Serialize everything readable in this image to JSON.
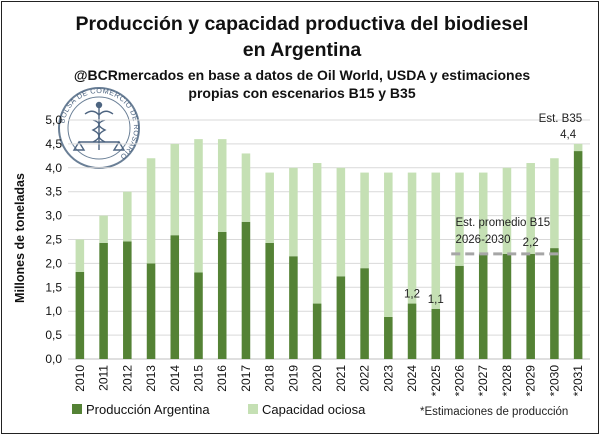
{
  "chart_data": {
    "type": "bar",
    "stacked": true,
    "title_line1": "Producción y capacidad productiva del biodiesel",
    "title_line2": "en Argentina",
    "subtitle_line1": "@BCRmercados en base a datos de Oil World, USDA y estimaciones",
    "subtitle_line2": "propias con escenarios B15 y B35",
    "ylabel": "Millones de toneladas",
    "ylim": [
      0,
      5
    ],
    "yticks": [
      "0,0",
      "0,5",
      "1,0",
      "1,5",
      "2,0",
      "2,5",
      "3,0",
      "3,5",
      "4,0",
      "4,5",
      "5,0"
    ],
    "ytick_values": [
      0,
      0.5,
      1,
      1.5,
      2,
      2.5,
      3,
      3.5,
      4,
      4.5,
      5
    ],
    "grid": "horizontal",
    "legend_position": "bottom",
    "categories": [
      "2010",
      "2011",
      "2012",
      "2013",
      "2014",
      "2015",
      "2016",
      "2017",
      "2018",
      "2019",
      "2020",
      "2021",
      "2022",
      "2023",
      "2024",
      "*2025",
      "*2026",
      "*2027",
      "*2028",
      "*2029",
      "*2030",
      "*2031"
    ],
    "series": [
      {
        "name": "Producción Argentina",
        "color": "#548235",
        "values": [
          1.82,
          2.43,
          2.46,
          2.0,
          2.59,
          1.81,
          2.66,
          2.87,
          2.43,
          2.15,
          1.16,
          1.73,
          1.9,
          0.88,
          1.16,
          1.05,
          1.95,
          2.2,
          2.2,
          2.2,
          2.32,
          4.35
        ]
      },
      {
        "name": "Capacidad ociosa",
        "color": "#c5e0b4",
        "values": [
          0.68,
          0.57,
          1.04,
          2.2,
          1.91,
          2.79,
          1.94,
          1.43,
          1.47,
          1.85,
          2.94,
          2.27,
          2.0,
          3.02,
          2.74,
          2.85,
          1.95,
          1.7,
          1.8,
          1.9,
          1.88,
          0.15
        ]
      }
    ],
    "annotations": [
      {
        "text": "1,2",
        "category": "2024",
        "value": 1.16
      },
      {
        "text": "1,1",
        "category": "*2025",
        "value": 1.05
      },
      {
        "text": "2,2",
        "category": "*2029",
        "value": 2.2
      },
      {
        "text": "Est. B35",
        "category": "*2031"
      },
      {
        "text": "4,4",
        "category": "*2031",
        "value": 4.35
      },
      {
        "text": "Est. promedio B15",
        "category": "*2026"
      },
      {
        "text": "2026-2030",
        "category": "*2026"
      }
    ],
    "reference_line": {
      "value": 2.2,
      "from": "*2026",
      "to": "*2030",
      "style": "dashed",
      "color": "#a6a6a6"
    },
    "footnote": "*Estimaciones de producción"
  },
  "logo": {
    "text_top": "BOLSA DE COMERCIO DE ROSARIO",
    "icon": "caduceus-seal-icon"
  }
}
